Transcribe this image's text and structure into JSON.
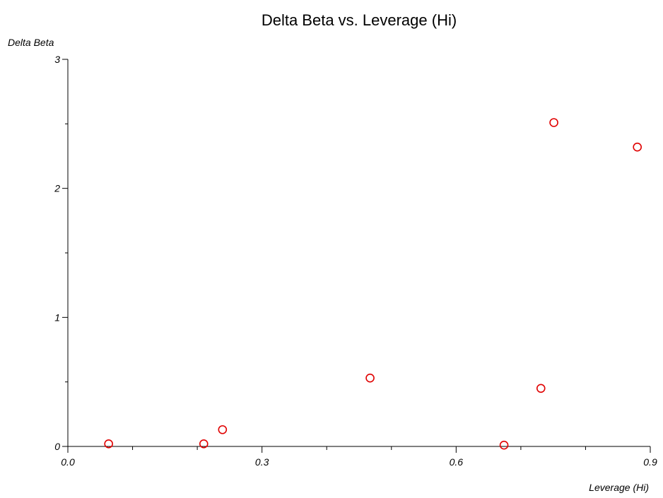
{
  "chart_data": {
    "type": "scatter",
    "title": "Delta Beta vs. Leverage (Hi)",
    "xlabel": "Leverage (Hi)",
    "ylabel": "Delta Beta",
    "xlim": [
      0.0,
      0.9
    ],
    "ylim": [
      0,
      3
    ],
    "x_ticks": [
      "0.0",
      "0.3",
      "0.6",
      "0.9"
    ],
    "y_ticks": [
      "0",
      "1",
      "2",
      "3"
    ],
    "grid": false,
    "marker": "open-circle",
    "marker_color": "#e00000",
    "series": [
      {
        "points": [
          {
            "x": 0.063,
            "y": 0.02
          },
          {
            "x": 0.21,
            "y": 0.02
          },
          {
            "x": 0.239,
            "y": 0.13
          },
          {
            "x": 0.467,
            "y": 0.53
          },
          {
            "x": 0.674,
            "y": 0.01
          },
          {
            "x": 0.731,
            "y": 0.45
          },
          {
            "x": 0.751,
            "y": 2.51
          },
          {
            "x": 0.88,
            "y": 2.32
          }
        ]
      }
    ]
  }
}
